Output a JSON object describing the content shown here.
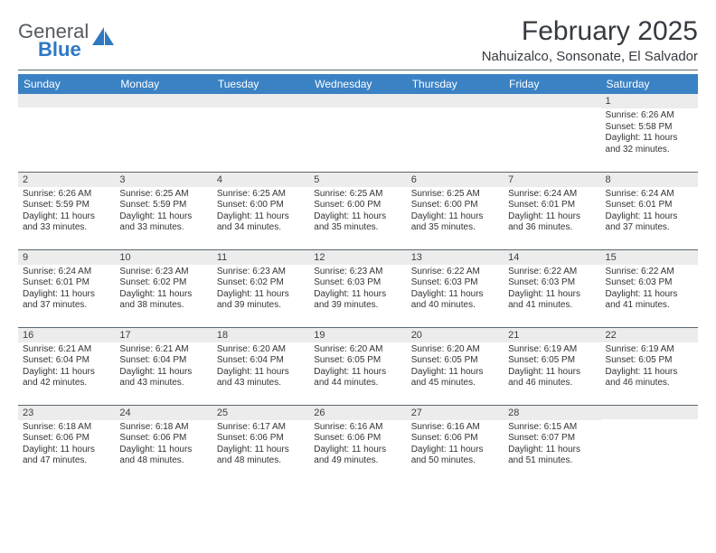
{
  "brand": {
    "top": "General",
    "bottom": "Blue",
    "text_color": "#555a60",
    "accent_color": "#2f78c2"
  },
  "title": "February 2025",
  "location": "Nahuizalco, Sonsonate, El Salvador",
  "header_bg": "#3a82c4",
  "header_text_color": "#ffffff",
  "daynum_bg": "#ececec",
  "rule_color": "#5b6770",
  "body_text_color": "#333333",
  "background_color": "#ffffff",
  "title_fontsize": 30,
  "location_fontsize": 15,
  "header_fontsize": 12,
  "daynum_fontsize": 11,
  "cell_fontsize": 10,
  "weekdays": [
    "Sunday",
    "Monday",
    "Tuesday",
    "Wednesday",
    "Thursday",
    "Friday",
    "Saturday"
  ],
  "weeks": [
    [
      {
        "day": "",
        "sunrise": "",
        "sunset": "",
        "daylight": ""
      },
      {
        "day": "",
        "sunrise": "",
        "sunset": "",
        "daylight": ""
      },
      {
        "day": "",
        "sunrise": "",
        "sunset": "",
        "daylight": ""
      },
      {
        "day": "",
        "sunrise": "",
        "sunset": "",
        "daylight": ""
      },
      {
        "day": "",
        "sunrise": "",
        "sunset": "",
        "daylight": ""
      },
      {
        "day": "",
        "sunrise": "",
        "sunset": "",
        "daylight": ""
      },
      {
        "day": "1",
        "sunrise": "Sunrise: 6:26 AM",
        "sunset": "Sunset: 5:58 PM",
        "daylight": "Daylight: 11 hours and 32 minutes."
      }
    ],
    [
      {
        "day": "2",
        "sunrise": "Sunrise: 6:26 AM",
        "sunset": "Sunset: 5:59 PM",
        "daylight": "Daylight: 11 hours and 33 minutes."
      },
      {
        "day": "3",
        "sunrise": "Sunrise: 6:25 AM",
        "sunset": "Sunset: 5:59 PM",
        "daylight": "Daylight: 11 hours and 33 minutes."
      },
      {
        "day": "4",
        "sunrise": "Sunrise: 6:25 AM",
        "sunset": "Sunset: 6:00 PM",
        "daylight": "Daylight: 11 hours and 34 minutes."
      },
      {
        "day": "5",
        "sunrise": "Sunrise: 6:25 AM",
        "sunset": "Sunset: 6:00 PM",
        "daylight": "Daylight: 11 hours and 35 minutes."
      },
      {
        "day": "6",
        "sunrise": "Sunrise: 6:25 AM",
        "sunset": "Sunset: 6:00 PM",
        "daylight": "Daylight: 11 hours and 35 minutes."
      },
      {
        "day": "7",
        "sunrise": "Sunrise: 6:24 AM",
        "sunset": "Sunset: 6:01 PM",
        "daylight": "Daylight: 11 hours and 36 minutes."
      },
      {
        "day": "8",
        "sunrise": "Sunrise: 6:24 AM",
        "sunset": "Sunset: 6:01 PM",
        "daylight": "Daylight: 11 hours and 37 minutes."
      }
    ],
    [
      {
        "day": "9",
        "sunrise": "Sunrise: 6:24 AM",
        "sunset": "Sunset: 6:01 PM",
        "daylight": "Daylight: 11 hours and 37 minutes."
      },
      {
        "day": "10",
        "sunrise": "Sunrise: 6:23 AM",
        "sunset": "Sunset: 6:02 PM",
        "daylight": "Daylight: 11 hours and 38 minutes."
      },
      {
        "day": "11",
        "sunrise": "Sunrise: 6:23 AM",
        "sunset": "Sunset: 6:02 PM",
        "daylight": "Daylight: 11 hours and 39 minutes."
      },
      {
        "day": "12",
        "sunrise": "Sunrise: 6:23 AM",
        "sunset": "Sunset: 6:03 PM",
        "daylight": "Daylight: 11 hours and 39 minutes."
      },
      {
        "day": "13",
        "sunrise": "Sunrise: 6:22 AM",
        "sunset": "Sunset: 6:03 PM",
        "daylight": "Daylight: 11 hours and 40 minutes."
      },
      {
        "day": "14",
        "sunrise": "Sunrise: 6:22 AM",
        "sunset": "Sunset: 6:03 PM",
        "daylight": "Daylight: 11 hours and 41 minutes."
      },
      {
        "day": "15",
        "sunrise": "Sunrise: 6:22 AM",
        "sunset": "Sunset: 6:03 PM",
        "daylight": "Daylight: 11 hours and 41 minutes."
      }
    ],
    [
      {
        "day": "16",
        "sunrise": "Sunrise: 6:21 AM",
        "sunset": "Sunset: 6:04 PM",
        "daylight": "Daylight: 11 hours and 42 minutes."
      },
      {
        "day": "17",
        "sunrise": "Sunrise: 6:21 AM",
        "sunset": "Sunset: 6:04 PM",
        "daylight": "Daylight: 11 hours and 43 minutes."
      },
      {
        "day": "18",
        "sunrise": "Sunrise: 6:20 AM",
        "sunset": "Sunset: 6:04 PM",
        "daylight": "Daylight: 11 hours and 43 minutes."
      },
      {
        "day": "19",
        "sunrise": "Sunrise: 6:20 AM",
        "sunset": "Sunset: 6:05 PM",
        "daylight": "Daylight: 11 hours and 44 minutes."
      },
      {
        "day": "20",
        "sunrise": "Sunrise: 6:20 AM",
        "sunset": "Sunset: 6:05 PM",
        "daylight": "Daylight: 11 hours and 45 minutes."
      },
      {
        "day": "21",
        "sunrise": "Sunrise: 6:19 AM",
        "sunset": "Sunset: 6:05 PM",
        "daylight": "Daylight: 11 hours and 46 minutes."
      },
      {
        "day": "22",
        "sunrise": "Sunrise: 6:19 AM",
        "sunset": "Sunset: 6:05 PM",
        "daylight": "Daylight: 11 hours and 46 minutes."
      }
    ],
    [
      {
        "day": "23",
        "sunrise": "Sunrise: 6:18 AM",
        "sunset": "Sunset: 6:06 PM",
        "daylight": "Daylight: 11 hours and 47 minutes."
      },
      {
        "day": "24",
        "sunrise": "Sunrise: 6:18 AM",
        "sunset": "Sunset: 6:06 PM",
        "daylight": "Daylight: 11 hours and 48 minutes."
      },
      {
        "day": "25",
        "sunrise": "Sunrise: 6:17 AM",
        "sunset": "Sunset: 6:06 PM",
        "daylight": "Daylight: 11 hours and 48 minutes."
      },
      {
        "day": "26",
        "sunrise": "Sunrise: 6:16 AM",
        "sunset": "Sunset: 6:06 PM",
        "daylight": "Daylight: 11 hours and 49 minutes."
      },
      {
        "day": "27",
        "sunrise": "Sunrise: 6:16 AM",
        "sunset": "Sunset: 6:06 PM",
        "daylight": "Daylight: 11 hours and 50 minutes."
      },
      {
        "day": "28",
        "sunrise": "Sunrise: 6:15 AM",
        "sunset": "Sunset: 6:07 PM",
        "daylight": "Daylight: 11 hours and 51 minutes."
      },
      {
        "day": "",
        "sunrise": "",
        "sunset": "",
        "daylight": ""
      }
    ]
  ]
}
